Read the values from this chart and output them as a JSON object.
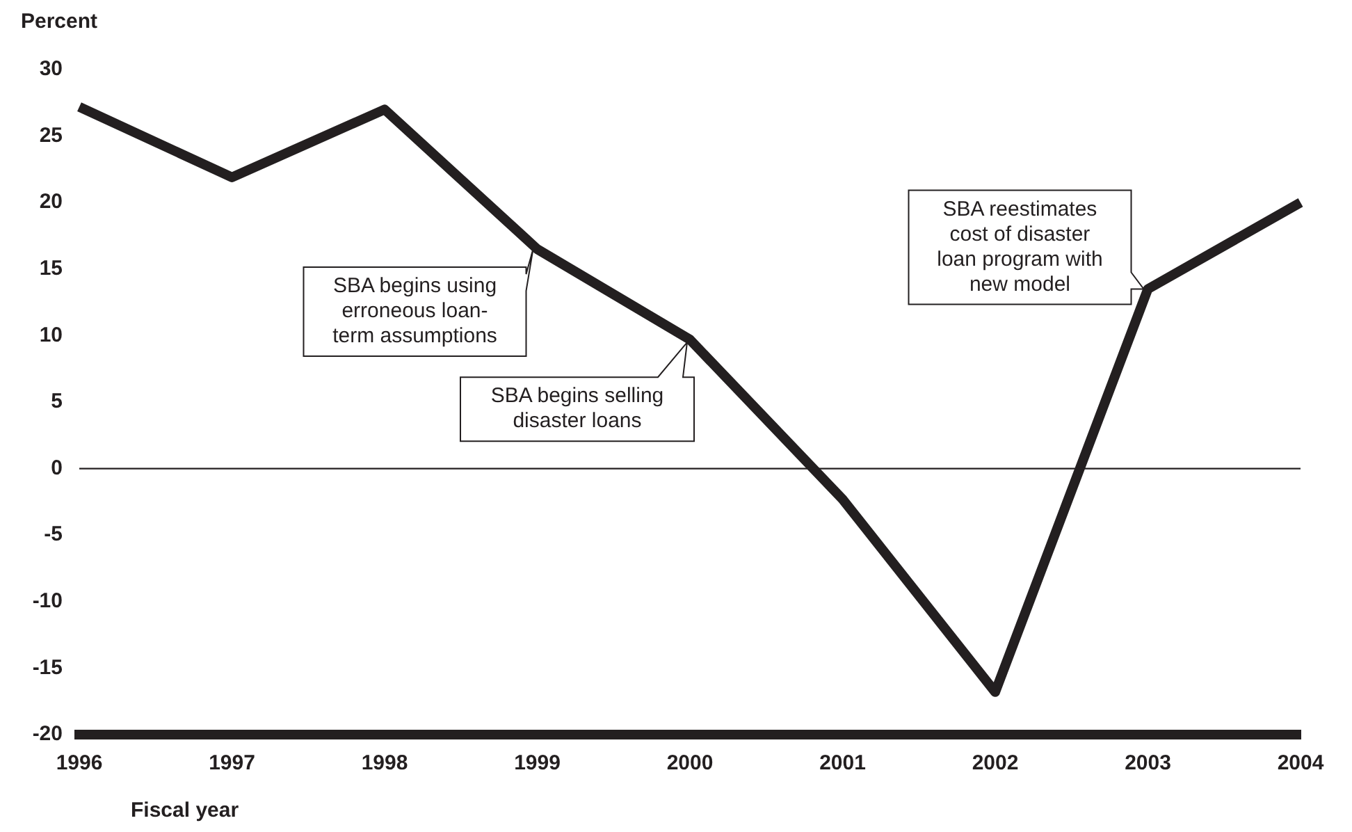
{
  "chart_data": {
    "type": "line",
    "ylabel": "Percent",
    "xlabel": "Fiscal year",
    "categories": [
      "1996",
      "1997",
      "1998",
      "1999",
      "2000",
      "2001",
      "2002",
      "2003",
      "2004"
    ],
    "series": [
      {
        "color": "#231f20",
        "values": [
          27.2,
          21.9,
          27.0,
          16.5,
          9.7,
          -2.3,
          -16.8,
          13.5,
          20.0
        ]
      }
    ],
    "ylim": [
      -20,
      30
    ],
    "yticks": [
      -20,
      -15,
      -10,
      -5,
      0,
      5,
      10,
      15,
      20,
      25,
      30
    ],
    "ref_lines": [
      {
        "axis": "y",
        "value": 0,
        "color": "#231f20"
      }
    ],
    "annotations": [
      {
        "text": "SBA begins using erroneous loan-term assumptions",
        "x": "1999",
        "y": 16.5
      },
      {
        "text": "SBA begins selling disaster loans",
        "x": "2000",
        "y": 9.7
      },
      {
        "text": "SBA reestimates cost of disaster loan program with new model",
        "x": "2003",
        "y": 13.5
      }
    ],
    "marker": "none",
    "line_style": "solid",
    "legend": false
  }
}
